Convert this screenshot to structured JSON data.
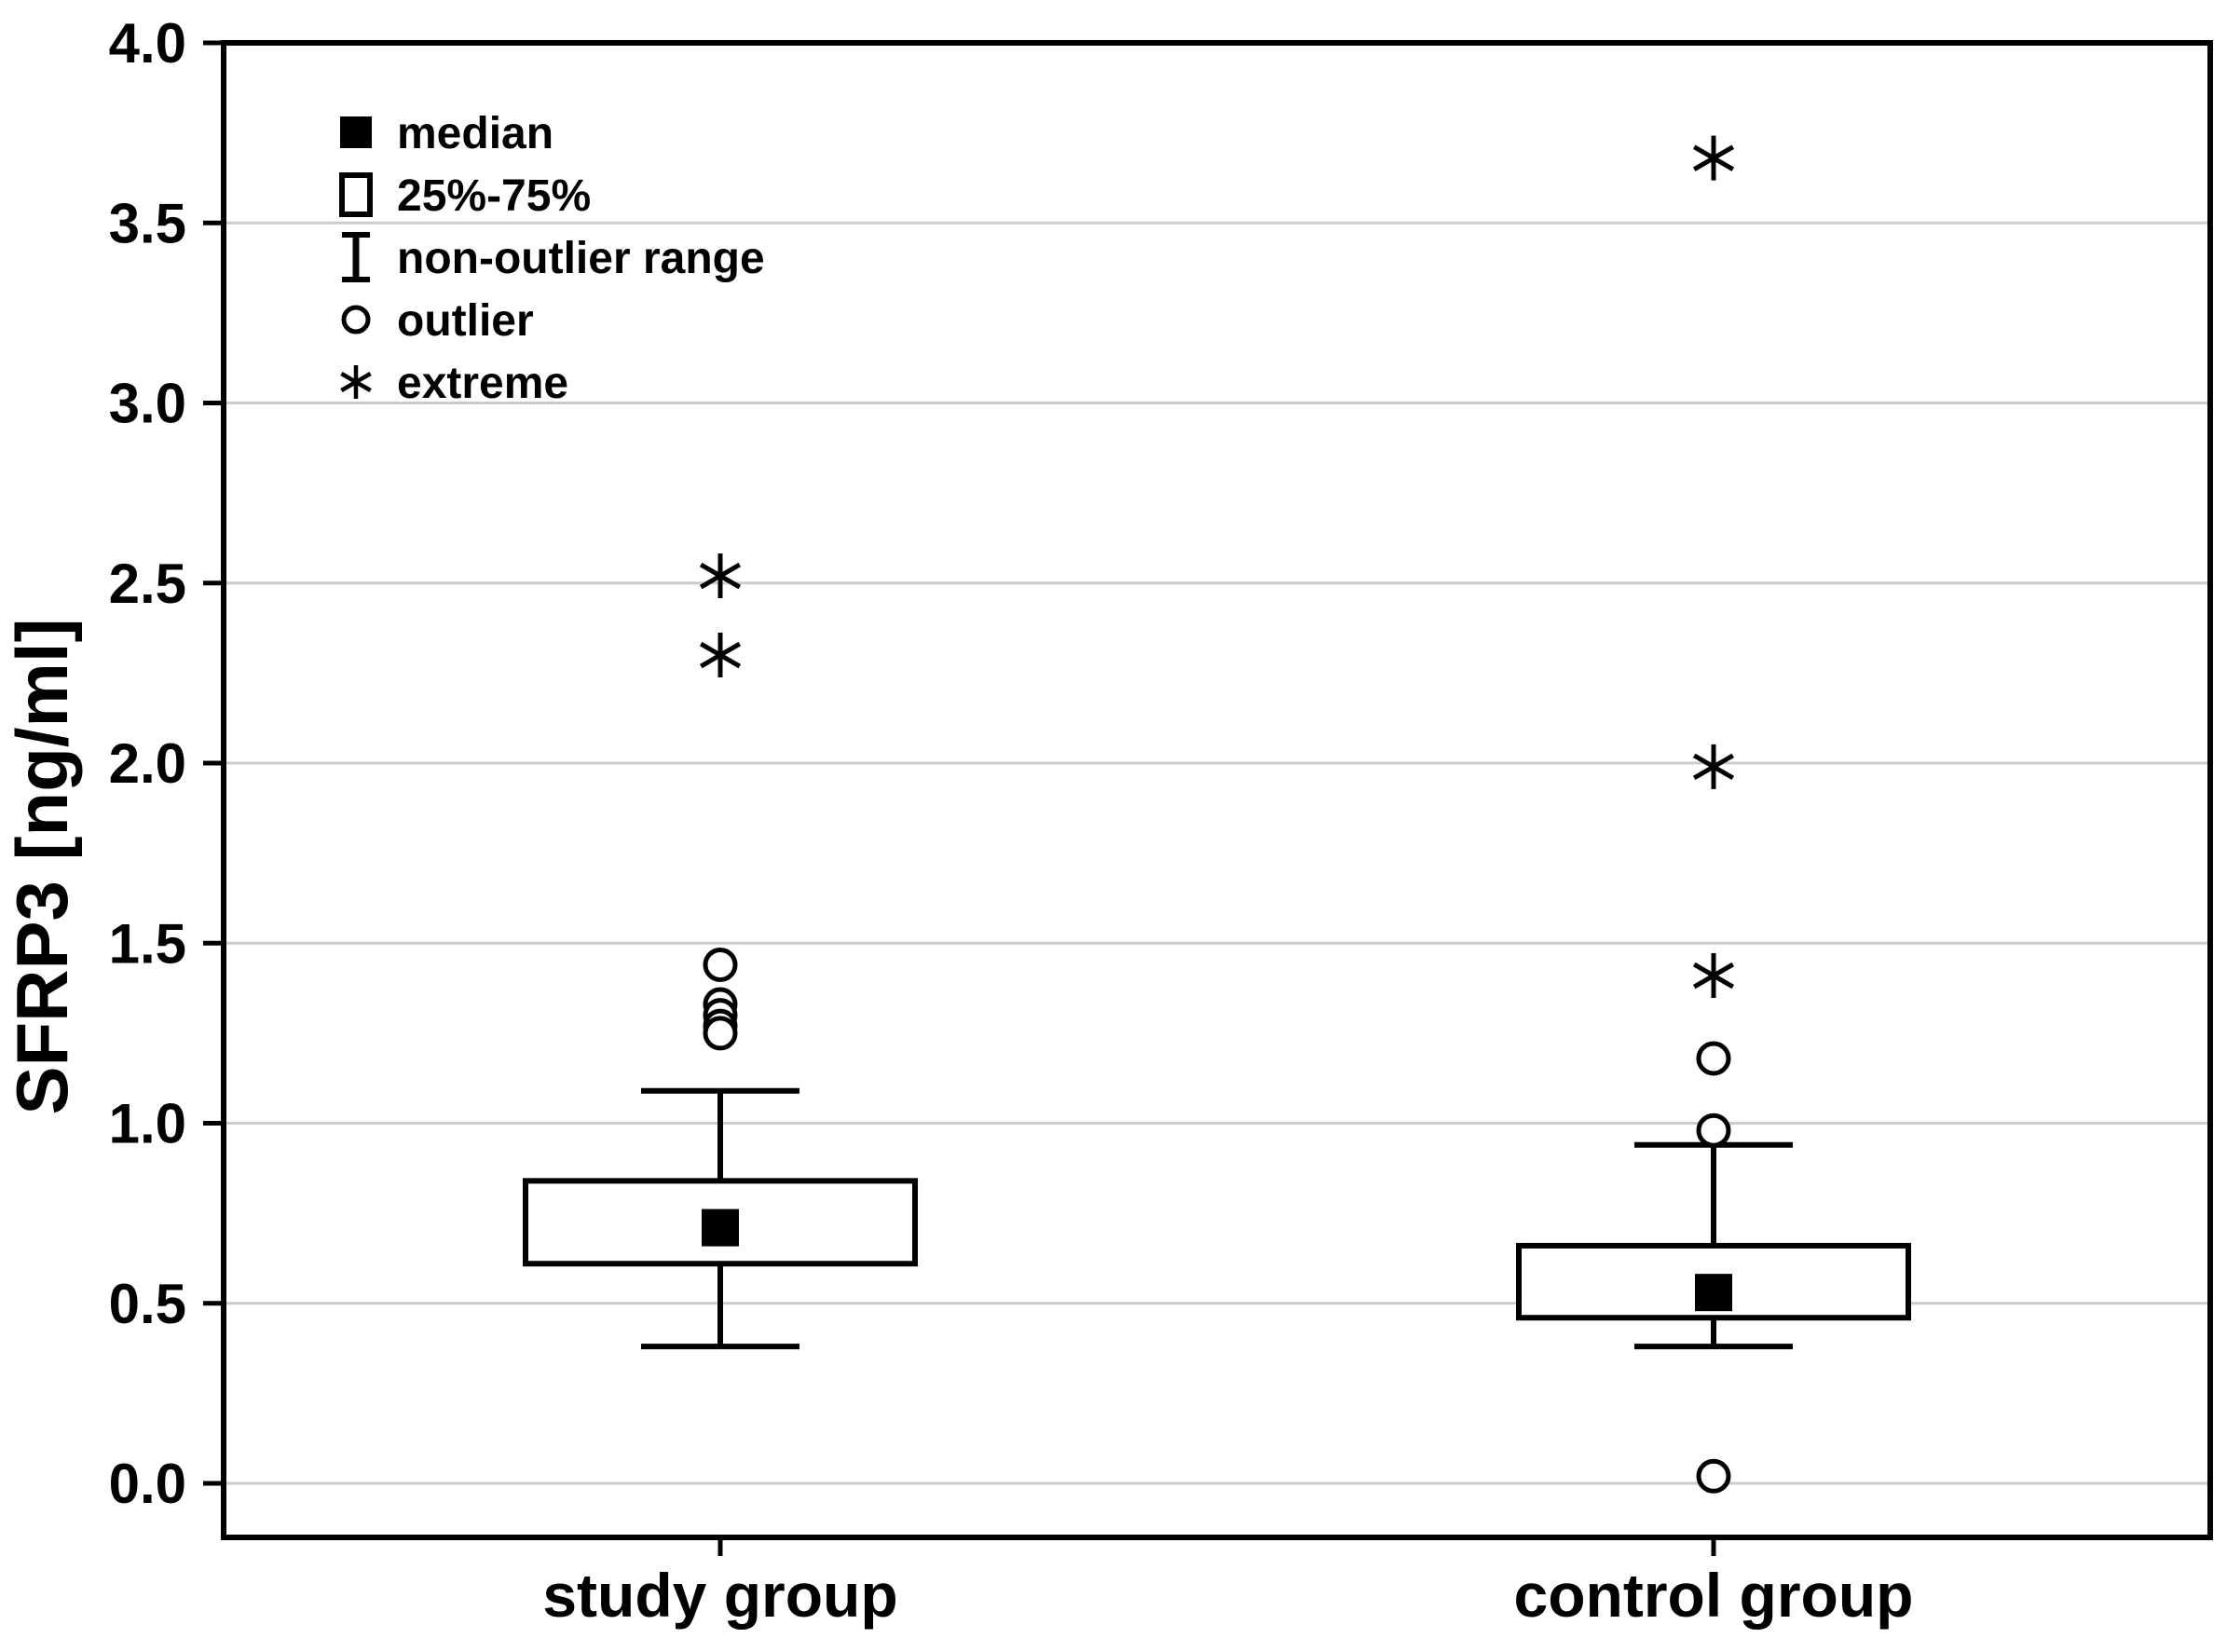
{
  "chart_data": {
    "type": "boxplot",
    "title": "",
    "ylabel": "SFRP3 [ng/ml]",
    "xlabel": "",
    "ylim": [
      -0.15,
      4.0
    ],
    "yticks": [
      0.0,
      0.5,
      1.0,
      1.5,
      2.0,
      2.5,
      3.0,
      3.5,
      4.0
    ],
    "ytick_format_decimals": 1,
    "grid": "horizontal",
    "legend_position": "top-left-inside",
    "categories": [
      "study group",
      "control group"
    ],
    "legend": [
      {
        "symbol": "filled-square",
        "label": "median"
      },
      {
        "symbol": "open-square",
        "label": "25%-75%"
      },
      {
        "symbol": "whisker",
        "label": "non-outlier range"
      },
      {
        "symbol": "circle",
        "label": "outlier"
      },
      {
        "symbol": "asterisk",
        "label": "extreme"
      }
    ],
    "series": [
      {
        "name": "study group",
        "median": 0.71,
        "q1": 0.61,
        "q3": 0.84,
        "whisker_low": 0.38,
        "whisker_high": 1.09,
        "outliers": [
          1.44,
          1.33,
          1.3,
          1.27,
          1.25
        ],
        "extremes": [
          2.52,
          2.3
        ]
      },
      {
        "name": "control group",
        "median": 0.53,
        "q1": 0.46,
        "q3": 0.66,
        "whisker_low": 0.38,
        "whisker_high": 0.94,
        "outliers": [
          1.18,
          0.98,
          0.02
        ],
        "extremes": [
          3.68,
          1.99,
          1.41
        ]
      }
    ]
  },
  "colors": {
    "stroke": "#000000",
    "grid": "#cccccc",
    "background": "#ffffff",
    "box_fill": "#ffffff",
    "median_fill": "#000000"
  }
}
